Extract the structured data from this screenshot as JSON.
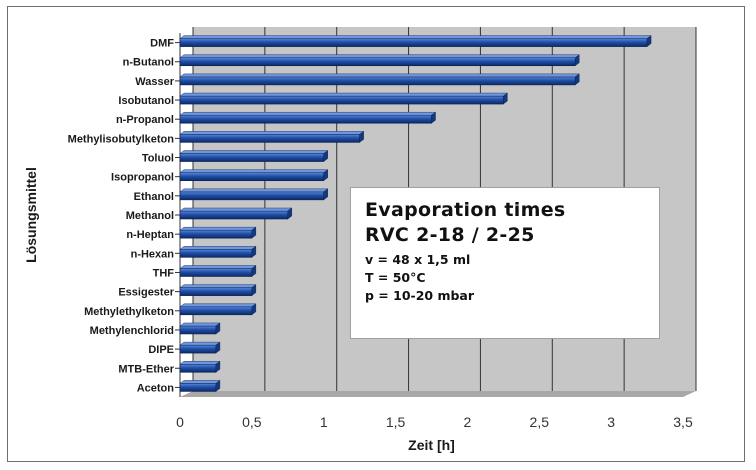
{
  "chart_data": {
    "type": "bar",
    "orientation": "horizontal",
    "categories": [
      "DMF",
      "n-Butanol",
      "Wasser",
      "Isobutanol",
      "n-Propanol",
      "Methylisobutylketon",
      "Toluol",
      "Isopropanol",
      "Ethanol",
      "Methanol",
      "n-Heptan",
      "n-Hexan",
      "THF",
      "Essigester",
      "Methylethylketon",
      "Methylenchlorid",
      "DIPE",
      "MTB-Ether",
      "Aceton"
    ],
    "values": [
      3.25,
      2.75,
      2.75,
      2.25,
      1.75,
      1.25,
      1.0,
      1.0,
      1.0,
      0.75,
      0.5,
      0.5,
      0.5,
      0.5,
      0.5,
      0.25,
      0.25,
      0.25,
      0.25
    ],
    "xlabel": "Zeit [h]",
    "ylabel": "Lösungsmittel",
    "xlim": [
      0,
      3.5
    ],
    "xticks": [
      "0",
      "0,5",
      "1",
      "1,5",
      "2",
      "2,5",
      "3",
      "3,5"
    ],
    "grid": "vertical",
    "bar_color": "#1f4fa8",
    "background_color": "#c8c8c8",
    "annotation": {
      "title_line1": "Evaporation times",
      "title_line2": "RVC 2-18 / 2-25",
      "line1": "v = 48 x 1,5 ml",
      "line2": "T = 50°C",
      "line3": "p = 10-20 mbar"
    }
  }
}
